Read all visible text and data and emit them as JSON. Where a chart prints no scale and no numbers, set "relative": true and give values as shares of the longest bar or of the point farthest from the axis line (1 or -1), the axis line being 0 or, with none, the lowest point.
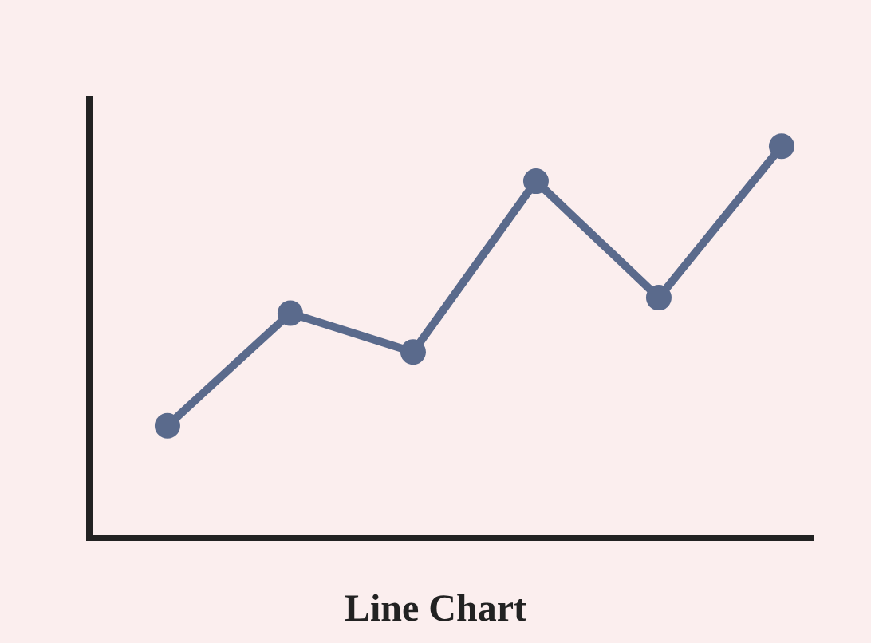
{
  "chart_data": {
    "type": "line",
    "title": "Line Chart",
    "relative": true,
    "categories": [
      null,
      null,
      null,
      null,
      null,
      null
    ],
    "series": [
      {
        "color": "#5a6a8c",
        "values": [
          0.28,
          0.57,
          0.47,
          0.91,
          0.61,
          1.0
        ]
      }
    ],
    "marker": "circle",
    "line_style": "solid",
    "grid": false
  }
}
